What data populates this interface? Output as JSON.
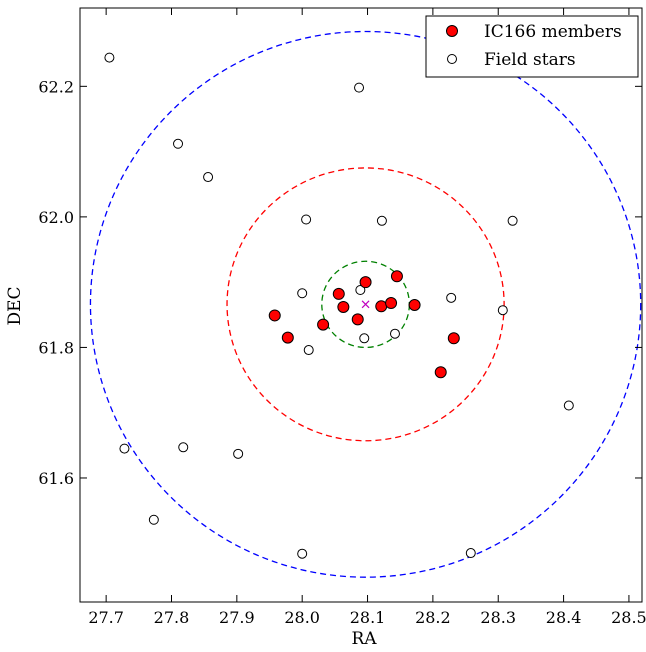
{
  "chart_data": {
    "type": "scatter",
    "xlabel": "RA",
    "ylabel": "DEC",
    "xlim": [
      27.66,
      28.52
    ],
    "ylim": [
      61.41,
      62.32
    ],
    "xticks": [
      "27.7",
      "27.8",
      "27.9",
      "28.0",
      "28.1",
      "28.2",
      "28.3",
      "28.4",
      "28.5"
    ],
    "yticks": [
      "61.6",
      "61.8",
      "62.0",
      "62.2"
    ],
    "legend": {
      "placement": "top-right",
      "entries": [
        "IC166 members",
        "Field stars"
      ]
    },
    "series": [
      {
        "name": "IC166 members",
        "marker": "filled-circle",
        "color": "#ff0000",
        "points": [
          [
            27.958,
            61.849
          ],
          [
            27.978,
            61.815
          ],
          [
            28.032,
            61.835
          ],
          [
            28.056,
            61.882
          ],
          [
            28.063,
            61.862
          ],
          [
            28.085,
            61.843
          ],
          [
            28.097,
            61.9
          ],
          [
            28.121,
            61.863
          ],
          [
            28.136,
            61.868
          ],
          [
            28.145,
            61.909
          ],
          [
            28.172,
            61.865
          ],
          [
            28.212,
            61.762
          ],
          [
            28.232,
            61.814
          ]
        ]
      },
      {
        "name": "Field stars",
        "marker": "open-circle",
        "color": "#ffffff",
        "points": [
          [
            27.705,
            62.244
          ],
          [
            27.81,
            62.112
          ],
          [
            27.856,
            62.061
          ],
          [
            28.087,
            62.198
          ],
          [
            28.006,
            61.996
          ],
          [
            28.122,
            61.994
          ],
          [
            28.322,
            61.994
          ],
          [
            28.0,
            61.883
          ],
          [
            28.089,
            61.888
          ],
          [
            28.01,
            61.796
          ],
          [
            28.095,
            61.814
          ],
          [
            28.142,
            61.821
          ],
          [
            28.228,
            61.876
          ],
          [
            28.307,
            61.857
          ],
          [
            28.408,
            61.711
          ],
          [
            27.728,
            61.645
          ],
          [
            27.818,
            61.647
          ],
          [
            27.902,
            61.637
          ],
          [
            27.773,
            61.536
          ],
          [
            28.0,
            61.484
          ],
          [
            28.258,
            61.485
          ]
        ]
      }
    ],
    "center_marker": {
      "symbol": "x",
      "color": "#bf00bf",
      "x": 28.097,
      "y": 61.866
    },
    "circles": [
      {
        "color": "#0000ff",
        "style": "dashed",
        "cx": 28.097,
        "cy": 61.866,
        "rx": 0.421,
        "ry": 0.418
      },
      {
        "color": "#ff0000",
        "style": "dashed",
        "cx": 28.097,
        "cy": 61.866,
        "rx": 0.212,
        "ry": 0.209
      },
      {
        "color": "#008000",
        "style": "dashed",
        "cx": 28.097,
        "cy": 61.866,
        "rx": 0.067,
        "ry": 0.066
      }
    ],
    "grid": false
  }
}
